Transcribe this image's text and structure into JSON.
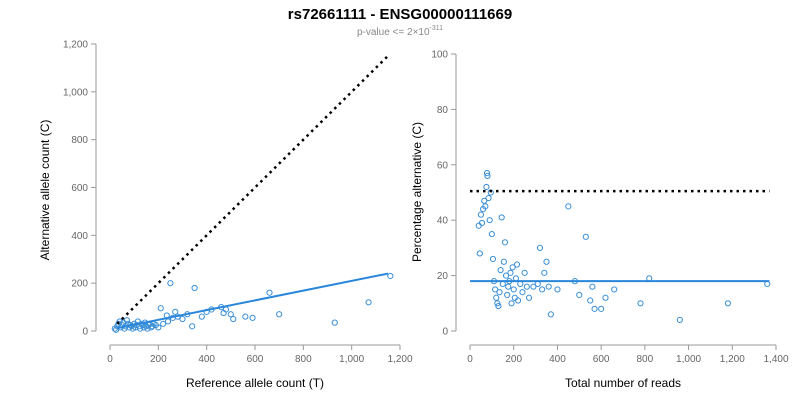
{
  "header": {
    "title": "rs72661111 - ENSG00000111669",
    "subtitle_prefix": "p-value <= 2×10",
    "subtitle_exponent": "-311"
  },
  "colors": {
    "points": "#3a8fd6",
    "fit": "#2a86db",
    "reference_line": "#000000",
    "axis": "#999999"
  },
  "chart_data": [
    {
      "type": "scatter",
      "xlabel": "Reference allele count (T)",
      "ylabel": "Alternative allele count (C)",
      "xlim": [
        0,
        1200
      ],
      "ylim": [
        0,
        1200
      ],
      "xticks": [
        0,
        200,
        400,
        600,
        800,
        1000,
        1200
      ],
      "yticks": [
        0,
        200,
        400,
        600,
        800,
        1000,
        1200
      ],
      "xtick_labels": [
        "0",
        "200",
        "400",
        "600",
        "800",
        "1,000",
        "1,200"
      ],
      "ytick_labels": [
        "0",
        "200",
        "400",
        "600",
        "800",
        "1,000",
        "1,200"
      ],
      "reference_line": {
        "style": "dotted",
        "x": [
          30,
          1150
        ],
        "y": [
          30,
          1150
        ]
      },
      "fit_line": {
        "x": [
          30,
          1150
        ],
        "y": [
          12,
          240
        ]
      },
      "points": [
        [
          20,
          10
        ],
        [
          25,
          5
        ],
        [
          30,
          20
        ],
        [
          35,
          30
        ],
        [
          40,
          40
        ],
        [
          45,
          15
        ],
        [
          50,
          25
        ],
        [
          55,
          35
        ],
        [
          60,
          10
        ],
        [
          65,
          20
        ],
        [
          70,
          45
        ],
        [
          75,
          30
        ],
        [
          80,
          15
        ],
        [
          85,
          25
        ],
        [
          90,
          20
        ],
        [
          95,
          10
        ],
        [
          100,
          30
        ],
        [
          105,
          15
        ],
        [
          110,
          25
        ],
        [
          115,
          40
        ],
        [
          120,
          20
        ],
        [
          125,
          10
        ],
        [
          130,
          30
        ],
        [
          135,
          25
        ],
        [
          140,
          15
        ],
        [
          145,
          35
        ],
        [
          150,
          20
        ],
        [
          155,
          10
        ],
        [
          160,
          25
        ],
        [
          165,
          30
        ],
        [
          170,
          15
        ],
        [
          175,
          20
        ],
        [
          180,
          30
        ],
        [
          190,
          25
        ],
        [
          200,
          15
        ],
        [
          210,
          95
        ],
        [
          220,
          30
        ],
        [
          235,
          65
        ],
        [
          240,
          40
        ],
        [
          250,
          200
        ],
        [
          260,
          55
        ],
        [
          270,
          80
        ],
        [
          280,
          60
        ],
        [
          300,
          50
        ],
        [
          320,
          70
        ],
        [
          340,
          20
        ],
        [
          350,
          180
        ],
        [
          380,
          60
        ],
        [
          400,
          80
        ],
        [
          420,
          90
        ],
        [
          460,
          100
        ],
        [
          470,
          75
        ],
        [
          480,
          90
        ],
        [
          500,
          70
        ],
        [
          510,
          50
        ],
        [
          560,
          60
        ],
        [
          590,
          55
        ],
        [
          660,
          160
        ],
        [
          700,
          70
        ],
        [
          930,
          35
        ],
        [
          1070,
          120
        ],
        [
          1160,
          230
        ]
      ]
    },
    {
      "type": "scatter",
      "xlabel": "Total number of reads",
      "ylabel": "Percentage alternative (C)",
      "xlim": [
        0,
        1400
      ],
      "ylim": [
        0,
        100
      ],
      "xticks": [
        0,
        200,
        400,
        600,
        800,
        1000,
        1200,
        1400
      ],
      "yticks": [
        0,
        20,
        40,
        60,
        80,
        100
      ],
      "xtick_labels": [
        "0",
        "200",
        "400",
        "600",
        "800",
        "1,000",
        "1,200",
        "1,400"
      ],
      "ytick_labels": [
        "0",
        "20",
        "40",
        "60",
        "80",
        "100"
      ],
      "reference_line": {
        "style": "dotted",
        "x": [
          0,
          1370
        ],
        "y": [
          50.5,
          50.5
        ]
      },
      "fit_line": {
        "x": [
          0,
          1370
        ],
        "y": [
          18,
          18
        ]
      },
      "points": [
        [
          40,
          38
        ],
        [
          45,
          28
        ],
        [
          50,
          42
        ],
        [
          55,
          39
        ],
        [
          60,
          44
        ],
        [
          65,
          47
        ],
        [
          70,
          45
        ],
        [
          75,
          52
        ],
        [
          78,
          57
        ],
        [
          80,
          56
        ],
        [
          85,
          48
        ],
        [
          90,
          40
        ],
        [
          95,
          50
        ],
        [
          100,
          35
        ],
        [
          105,
          26
        ],
        [
          110,
          18
        ],
        [
          115,
          15
        ],
        [
          120,
          12
        ],
        [
          125,
          10
        ],
        [
          130,
          9
        ],
        [
          135,
          14
        ],
        [
          140,
          22
        ],
        [
          145,
          41
        ],
        [
          150,
          17
        ],
        [
          155,
          25
        ],
        [
          160,
          32
        ],
        [
          165,
          20
        ],
        [
          170,
          13
        ],
        [
          175,
          16
        ],
        [
          180,
          18
        ],
        [
          185,
          21
        ],
        [
          190,
          10
        ],
        [
          195,
          23
        ],
        [
          200,
          15
        ],
        [
          205,
          12
        ],
        [
          210,
          19
        ],
        [
          215,
          24
        ],
        [
          220,
          11
        ],
        [
          230,
          17
        ],
        [
          240,
          14
        ],
        [
          250,
          21
        ],
        [
          260,
          16
        ],
        [
          270,
          12
        ],
        [
          290,
          16
        ],
        [
          310,
          17
        ],
        [
          320,
          30
        ],
        [
          330,
          15
        ],
        [
          340,
          21
        ],
        [
          350,
          25
        ],
        [
          360,
          16
        ],
        [
          370,
          6
        ],
        [
          400,
          15
        ],
        [
          450,
          45
        ],
        [
          480,
          18
        ],
        [
          500,
          13
        ],
        [
          530,
          34
        ],
        [
          550,
          11
        ],
        [
          560,
          16
        ],
        [
          570,
          8
        ],
        [
          600,
          8
        ],
        [
          620,
          12
        ],
        [
          660,
          15
        ],
        [
          780,
          10
        ],
        [
          820,
          19
        ],
        [
          960,
          4
        ],
        [
          1180,
          10
        ],
        [
          1360,
          17
        ]
      ]
    }
  ]
}
